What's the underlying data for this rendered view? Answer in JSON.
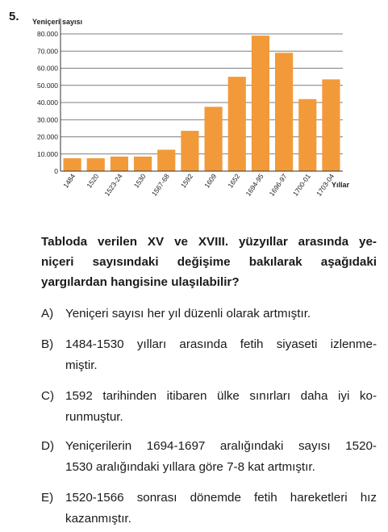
{
  "question_number": "5.",
  "chart_data": {
    "type": "bar",
    "ylabel": "Yeniçeri sayısı",
    "xlabel": "Yıllar",
    "categories": [
      "1484",
      "1520",
      "1523-24",
      "1530",
      "1567-68",
      "1592",
      "1609",
      "1652",
      "1694-95",
      "1696-97",
      "1700-01",
      "1703-04"
    ],
    "values": [
      7500,
      7500,
      8500,
      8500,
      12500,
      23500,
      37500,
      55000,
      79000,
      69000,
      42000,
      53500
    ],
    "yticks": [
      "0",
      "10.000",
      "20.000",
      "30.000",
      "40.000",
      "50.000",
      "60.000",
      "70.000",
      "80.000"
    ],
    "ylim": [
      0,
      80000
    ],
    "grid": true,
    "bar_color": "#f29a3a"
  },
  "question": {
    "lines": [
      "Tabloda verilen XV ve XVIII. yüzyıllar arasında ye-",
      "niçeri sayısındaki değişime bakılarak aşağıdaki",
      "yargılardan hangisine ulaşılabilir?"
    ]
  },
  "options": [
    {
      "letter": "A)",
      "lines": [
        "Yeniçeri sayısı her yıl düzenli olarak artmıştır."
      ]
    },
    {
      "letter": "B)",
      "lines": [
        "1484-1530 yılları arasında fetih siyaseti izlenme-",
        "miştir."
      ]
    },
    {
      "letter": "C)",
      "lines": [
        "1592 tarihinden itibaren ülke sınırları daha iyi ko-",
        "runmuştur."
      ]
    },
    {
      "letter": "D)",
      "lines": [
        "Yeniçerilerin 1694-1697 aralığındaki sayısı 1520-",
        "1530 aralığındaki yıllara göre 7-8 kat artmıştır."
      ]
    },
    {
      "letter": "E)",
      "lines": [
        "1520-1566 sonrası dönemde fetih hareketleri hız",
        "kazanmıştır."
      ]
    }
  ]
}
